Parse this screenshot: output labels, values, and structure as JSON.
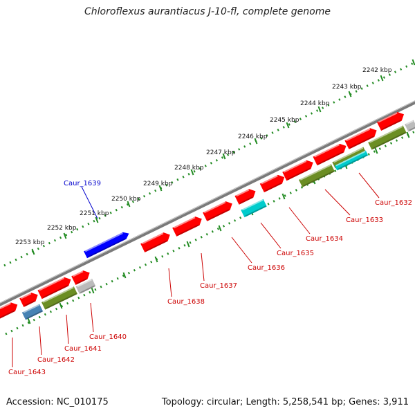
{
  "title": "Chloroflexus aurantiacus J-10-fl, complete genome",
  "footer": {
    "accession": "Accession: NC_010175",
    "summary": "Topology: circular; Length: 5,258,541 bp; Genes: 3,911"
  },
  "ruler": {
    "unit": "kbp",
    "labels": [
      "2242 kbp",
      "2243 kbp",
      "2244 kbp",
      "2245 kbp",
      "2246 kbp",
      "2247 kbp",
      "2248 kbp",
      "2249 kbp",
      "2250 kbp",
      "2251 kbp",
      "2252 kbp",
      "2253 kbp"
    ]
  },
  "colors": {
    "forward_cds": "#ff0000",
    "reverse_cds": "#ff0000",
    "highlight_cds": "#0000ff",
    "cyan_feature": "#00cccc",
    "olive_feature": "#6b8e23",
    "grey_feature": "#bbbbbb",
    "steel_feature": "#4682b4",
    "ruler_color": "#228b22",
    "label_red": "#cc0000",
    "label_blue": "#0000cc"
  },
  "gene_labels": {
    "highlighted": [
      "Caur_1639"
    ],
    "labels": [
      "Caur_1632",
      "Caur_1633",
      "Caur_1634",
      "Caur_1635",
      "Caur_1636",
      "Caur_1637",
      "Caur_1638",
      "Caur_1640",
      "Caur_1641",
      "Caur_1642",
      "Caur_1643"
    ]
  }
}
